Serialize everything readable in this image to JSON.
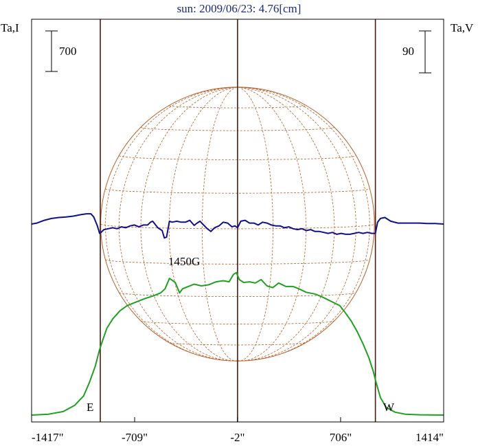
{
  "title": "sun: 2009/06/23: 4.76[cm]",
  "left_axis_label": "Ta,I",
  "right_axis_label": "Ta,V",
  "left_scale_label": "700",
  "right_scale_label": "90",
  "east_label": "E",
  "west_label": "W",
  "annotation": "1450G",
  "colors": {
    "background": "#ffffff",
    "frame": "#000000",
    "intensity": "#20a020",
    "polarization": "#10108a",
    "limb_lines": "#4a1a10",
    "solar_grid": "#b8602a",
    "title": "#1a2a7a"
  },
  "chart_data": {
    "type": "line",
    "title": "sun: 2009/06/23: 4.76[cm]",
    "xlabel": "",
    "x_tick_labels": [
      "-1417\"",
      "-709\"",
      "-2\"",
      "706\"",
      "1414\""
    ],
    "x_ticks": [
      -1417,
      -709,
      -2,
      706,
      1414
    ],
    "xlim": [
      -1417,
      1414
    ],
    "disk_limbs": [
      -945,
      945
    ],
    "disk_center": -2,
    "scale_bars": {
      "I": 700,
      "V": 90
    },
    "series": [
      {
        "name": "Ta,I",
        "x": [
          -1417,
          -1300,
          -1200,
          -1120,
          -1060,
          -1020,
          -980,
          -950,
          -930,
          -900,
          -860,
          -810,
          -760,
          -700,
          -640,
          -580,
          -530,
          -500,
          -470,
          -430,
          -400,
          -380,
          -350,
          -300,
          -250,
          -200,
          -150,
          -100,
          -60,
          -30,
          -10,
          10,
          40,
          80,
          120,
          160,
          200,
          240,
          280,
          330,
          380,
          420,
          470,
          530,
          580,
          620,
          660,
          700,
          740,
          780,
          820,
          860,
          900,
          930,
          950,
          980,
          1020,
          1080,
          1150,
          1250,
          1414
        ],
        "y": [
          0,
          15,
          60,
          170,
          330,
          560,
          840,
          1130,
          1280,
          1500,
          1660,
          1800,
          1890,
          1950,
          2010,
          2060,
          2110,
          2180,
          2360,
          2290,
          2110,
          2180,
          2210,
          2260,
          2230,
          2250,
          2300,
          2320,
          2300,
          2430,
          2460,
          2340,
          2290,
          2300,
          2280,
          2340,
          2230,
          2200,
          2280,
          2220,
          2220,
          2180,
          2120,
          2090,
          2040,
          1990,
          1940,
          1890,
          1760,
          1620,
          1440,
          1230,
          990,
          760,
          560,
          300,
          130,
          50,
          15,
          5,
          0
        ]
      },
      {
        "name": "Ta,V",
        "x": [
          -1417,
          -1380,
          -1330,
          -1280,
          -1230,
          -1180,
          -1130,
          -1080,
          -1040,
          -1010,
          -990,
          -965,
          -950,
          -940,
          -920,
          -890,
          -860,
          -830,
          -800,
          -770,
          -740,
          -710,
          -680,
          -650,
          -620,
          -600,
          -585,
          -570,
          -550,
          -520,
          -505,
          -490,
          -470,
          -450,
          -420,
          -390,
          -360,
          -330,
          -300,
          -280,
          -260,
          -235,
          -210,
          -185,
          -160,
          -130,
          -100,
          -70,
          -40,
          -20,
          -2,
          20,
          50,
          80,
          110,
          140,
          170,
          200,
          230,
          260,
          290,
          320,
          350,
          380,
          410,
          440,
          470,
          500,
          530,
          560,
          590,
          620,
          650,
          680,
          710,
          740,
          770,
          800,
          830,
          860,
          890,
          920,
          945,
          960,
          980,
          1010,
          1050,
          1100,
          1150,
          1200,
          1250,
          1300,
          1360,
          1414
        ],
        "y": [
          0,
          2,
          8,
          12,
          14,
          15,
          17,
          20,
          22,
          22,
          15,
          -4,
          -20,
          -18,
          -12,
          -10,
          -8,
          -10,
          -6,
          -8,
          -4,
          -2,
          -6,
          -2,
          -2,
          4,
          6,
          0,
          -8,
          -14,
          -30,
          -28,
          6,
          4,
          6,
          4,
          4,
          8,
          -3,
          2,
          6,
          -2,
          -10,
          -16,
          -8,
          -4,
          4,
          2,
          -6,
          -4,
          -8,
          6,
          8,
          2,
          2,
          -2,
          4,
          2,
          -2,
          -4,
          -4,
          -8,
          -6,
          -10,
          -12,
          -10,
          -14,
          -12,
          -16,
          -16,
          -18,
          -20,
          -18,
          -22,
          -20,
          -22,
          -22,
          -20,
          -18,
          -20,
          -18,
          -20,
          -20,
          4,
          12,
          14,
          6,
          2,
          2,
          2,
          2,
          1,
          1,
          0
        ]
      }
    ],
    "disk_grid": {
      "latitudes_deg": [
        -60,
        -45,
        -30,
        -15,
        0,
        15,
        30,
        45,
        60
      ],
      "longitudes_deg": [
        -75,
        -60,
        -45,
        -30,
        -15,
        0,
        15,
        30,
        45,
        60,
        75
      ]
    }
  }
}
